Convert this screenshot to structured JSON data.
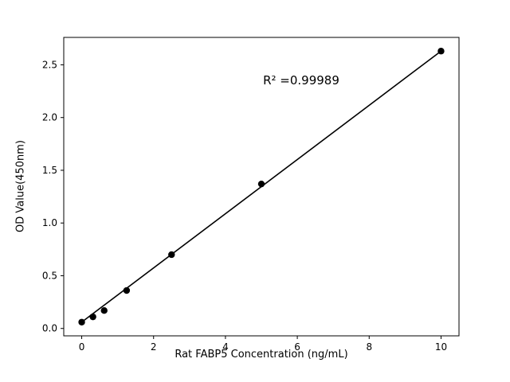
{
  "chart_data": {
    "type": "scatter",
    "x": [
      0,
      0.3125,
      0.625,
      1.25,
      2.5,
      5,
      10
    ],
    "y": [
      0.06,
      0.11,
      0.17,
      0.36,
      0.7,
      1.37,
      2.63
    ],
    "fit_line": {
      "x1": 0,
      "y1": 0.06,
      "x2": 10,
      "y2": 2.63
    },
    "title": "",
    "xlabel": "Rat FABP5 Concentration (ng/mL)",
    "ylabel": "OD Value(450nm)",
    "annotation": "R² =0.99989",
    "xlim": [
      -0.5,
      10.5
    ],
    "ylim": [
      -0.07,
      2.76
    ],
    "xticks": [
      0,
      2,
      4,
      6,
      8,
      10
    ],
    "yticks": [
      0.0,
      0.5,
      1.0,
      1.5,
      2.0,
      2.5
    ],
    "grid": false,
    "legend": null,
    "marker_color": "#000000",
    "line_color": "#000000",
    "background": "#ffffff"
  }
}
